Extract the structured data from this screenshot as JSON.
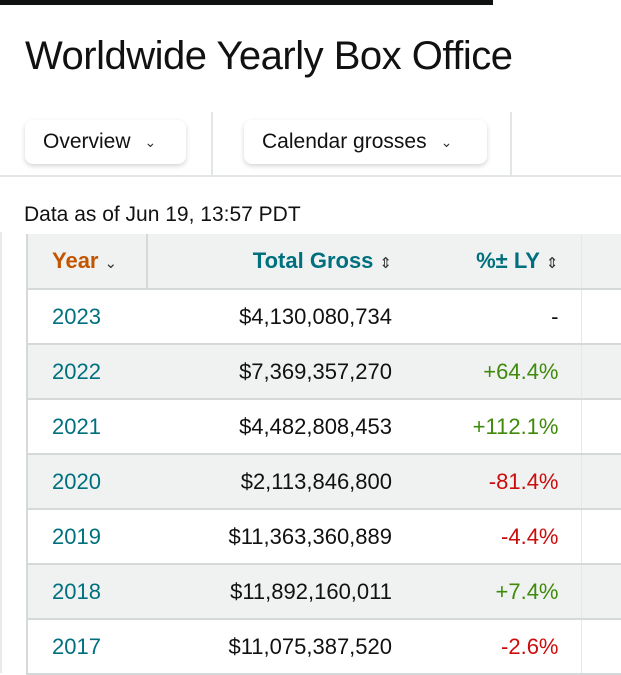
{
  "page": {
    "title": "Worldwide Yearly Box Office",
    "data_as_of": "Data as of Jun 19, 13:57 PDT"
  },
  "toolbar": {
    "view_select": "Overview",
    "gross_type_select": "Calendar grosses"
  },
  "table": {
    "headers": {
      "year": "Year",
      "total_gross": "Total Gross",
      "pct_ly": "%± LY"
    },
    "rows": [
      {
        "year": "2023",
        "gross": "$4,130,080,734",
        "pct": "-",
        "trend": "none"
      },
      {
        "year": "2022",
        "gross": "$7,369,357,270",
        "pct": "+64.4%",
        "trend": "pos"
      },
      {
        "year": "2021",
        "gross": "$4,482,808,453",
        "pct": "+112.1%",
        "trend": "pos"
      },
      {
        "year": "2020",
        "gross": "$2,113,846,800",
        "pct": "-81.4%",
        "trend": "neg"
      },
      {
        "year": "2019",
        "gross": "$11,363,360,889",
        "pct": "-4.4%",
        "trend": "neg"
      },
      {
        "year": "2018",
        "gross": "$11,892,160,011",
        "pct": "+7.4%",
        "trend": "pos"
      },
      {
        "year": "2017",
        "gross": "$11,075,387,520",
        "pct": "-2.6%",
        "trend": "neg"
      }
    ]
  },
  "colors": {
    "link": "#00707e",
    "sorted_header": "#c45500",
    "positive": "#3f8a0b",
    "negative": "#cc0c0c"
  }
}
